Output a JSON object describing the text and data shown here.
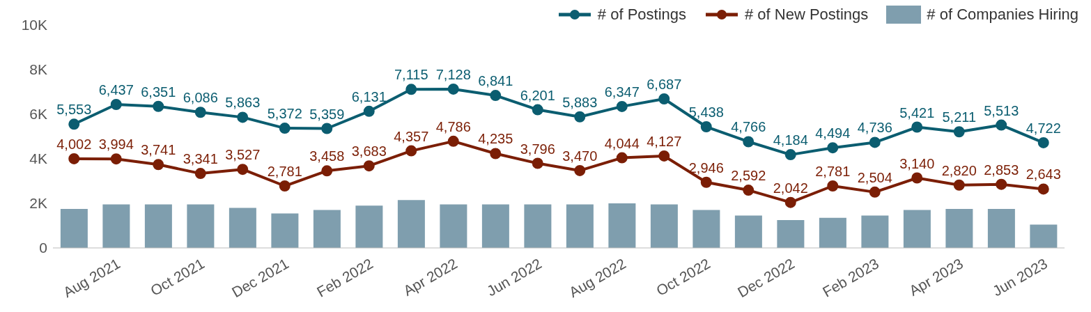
{
  "chart_data": {
    "type": "line",
    "categories": [
      null,
      "Aug 2021",
      null,
      "Oct 2021",
      null,
      "Dec 2021",
      null,
      "Feb 2022",
      null,
      "Apr 2022",
      null,
      "Jun 2022",
      null,
      "Aug 2022",
      null,
      "Oct 2022",
      null,
      "Dec 2022",
      null,
      "Feb 2023",
      null,
      "Apr 2023",
      null,
      "Jun 2023"
    ],
    "series": [
      {
        "name": "# of Postings",
        "color": "#0b5d70",
        "values": [
          5553,
          6437,
          6351,
          6086,
          5863,
          5372,
          5359,
          6131,
          7115,
          7128,
          6841,
          6201,
          5883,
          6347,
          6687,
          5438,
          4766,
          4184,
          4494,
          4736,
          5421,
          5211,
          5513,
          4722
        ],
        "value_labels": [
          "5,553",
          "6,437",
          "6,351",
          "6,086",
          "5,863",
          "5,372",
          "5,359",
          "6,131",
          "7,115",
          "7,128",
          "6,841",
          "6,201",
          "5,883",
          "6,347",
          "6,687",
          "5,438",
          "4,766",
          "4,184",
          "4,494",
          "4,736",
          "5,421",
          "5,211",
          "5,513",
          "4,722"
        ]
      },
      {
        "name": "# of New Postings",
        "color": "#7b1e05",
        "values": [
          4002,
          3994,
          3741,
          3341,
          3527,
          2781,
          3458,
          3683,
          4357,
          4786,
          4235,
          3796,
          3470,
          4044,
          4127,
          2946,
          2592,
          2042,
          2781,
          2504,
          3140,
          2820,
          2853,
          2643
        ],
        "value_labels": [
          "4,002",
          "3,994",
          "3,741",
          "3,341",
          "3,527",
          "2,781",
          "3,458",
          "3,683",
          "4,357",
          "4,786",
          "4,235",
          "3,796",
          "3,470",
          "4,044",
          "4,127",
          "2,946",
          "2,592",
          "2,042",
          "2,781",
          "2,504",
          "3,140",
          "2,820",
          "2,853",
          "2,643"
        ]
      },
      {
        "name": "# of Companies Hiring",
        "type": "bar",
        "color": "#7f9eae",
        "values": [
          1750,
          1950,
          1950,
          1950,
          1800,
          1550,
          1700,
          1900,
          2150,
          1950,
          1950,
          1950,
          1950,
          2000,
          1950,
          1700,
          1450,
          1250,
          1350,
          1450,
          1700,
          1750,
          1750,
          1050
        ]
      }
    ],
    "ylim": [
      0,
      10000
    ],
    "yticks": [
      0,
      {
        "value": 2000,
        "label": "2K"
      },
      {
        "value": 4000,
        "label": "4K"
      },
      {
        "value": 6000,
        "label": "6K"
      },
      {
        "value": 8000,
        "label": "8K"
      },
      {
        "value": 10000,
        "label": "10K"
      }
    ],
    "grid": false,
    "legend": "top right",
    "marker": "circle",
    "line_style": "solid"
  }
}
